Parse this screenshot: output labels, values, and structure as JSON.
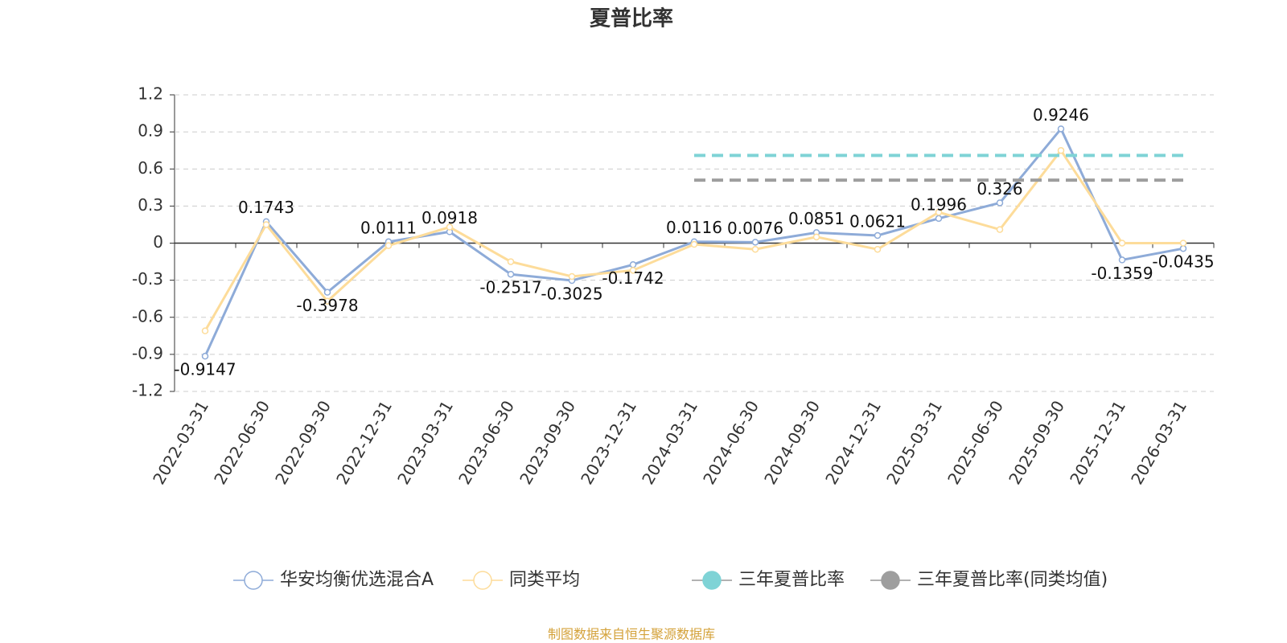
{
  "chart_data": {
    "type": "line",
    "title": "夏普比率",
    "categories": [
      "2022-03-31",
      "2022-06-30",
      "2022-09-30",
      "2022-12-31",
      "2023-03-31",
      "2023-06-30",
      "2023-09-30",
      "2023-12-31",
      "2024-03-31",
      "2024-06-30",
      "2024-09-30",
      "2024-12-31",
      "2025-03-31",
      "2025-06-30",
      "2025-09-30",
      "2025-12-31",
      "2026-03-31"
    ],
    "series": [
      {
        "name": "华安均衡优选混合A",
        "color": "#8eabd8",
        "values": [
          -0.9147,
          0.1743,
          -0.3978,
          0.0111,
          0.0918,
          -0.2517,
          -0.3025,
          -0.1742,
          0.0116,
          0.0076,
          0.0851,
          0.0621,
          0.1996,
          0.326,
          0.9246,
          -0.1359,
          -0.0435
        ]
      },
      {
        "name": "同类平均",
        "color": "#fddc9a",
        "values": [
          -0.71,
          0.15,
          -0.47,
          -0.02,
          0.13,
          -0.15,
          -0.27,
          -0.22,
          -0.01,
          -0.05,
          0.05,
          -0.05,
          0.25,
          0.11,
          0.75,
          0.0,
          0.0
        ]
      },
      {
        "name": "三年夏普比率",
        "color": "#7fd3d6",
        "values": [
          null,
          null,
          null,
          null,
          null,
          null,
          null,
          null,
          0.71,
          0.71,
          0.71,
          0.71,
          0.71,
          0.71,
          0.71,
          0.71,
          0.71
        ]
      },
      {
        "name": "三年夏普比率(同类均值)",
        "color": "#9e9e9e",
        "values": [
          null,
          null,
          null,
          null,
          null,
          null,
          null,
          null,
          0.51,
          0.51,
          0.51,
          0.51,
          0.51,
          0.51,
          0.51,
          0.51,
          0.51
        ]
      }
    ],
    "ylim": [
      -1.2,
      1.2
    ],
    "yticks": [
      -1.2,
      -0.9,
      -0.6,
      -0.3,
      0,
      0.3,
      0.6,
      0.9,
      1.2
    ],
    "grid": true,
    "legend": "bottom",
    "note": "制图数据来自恒生聚源数据库"
  }
}
